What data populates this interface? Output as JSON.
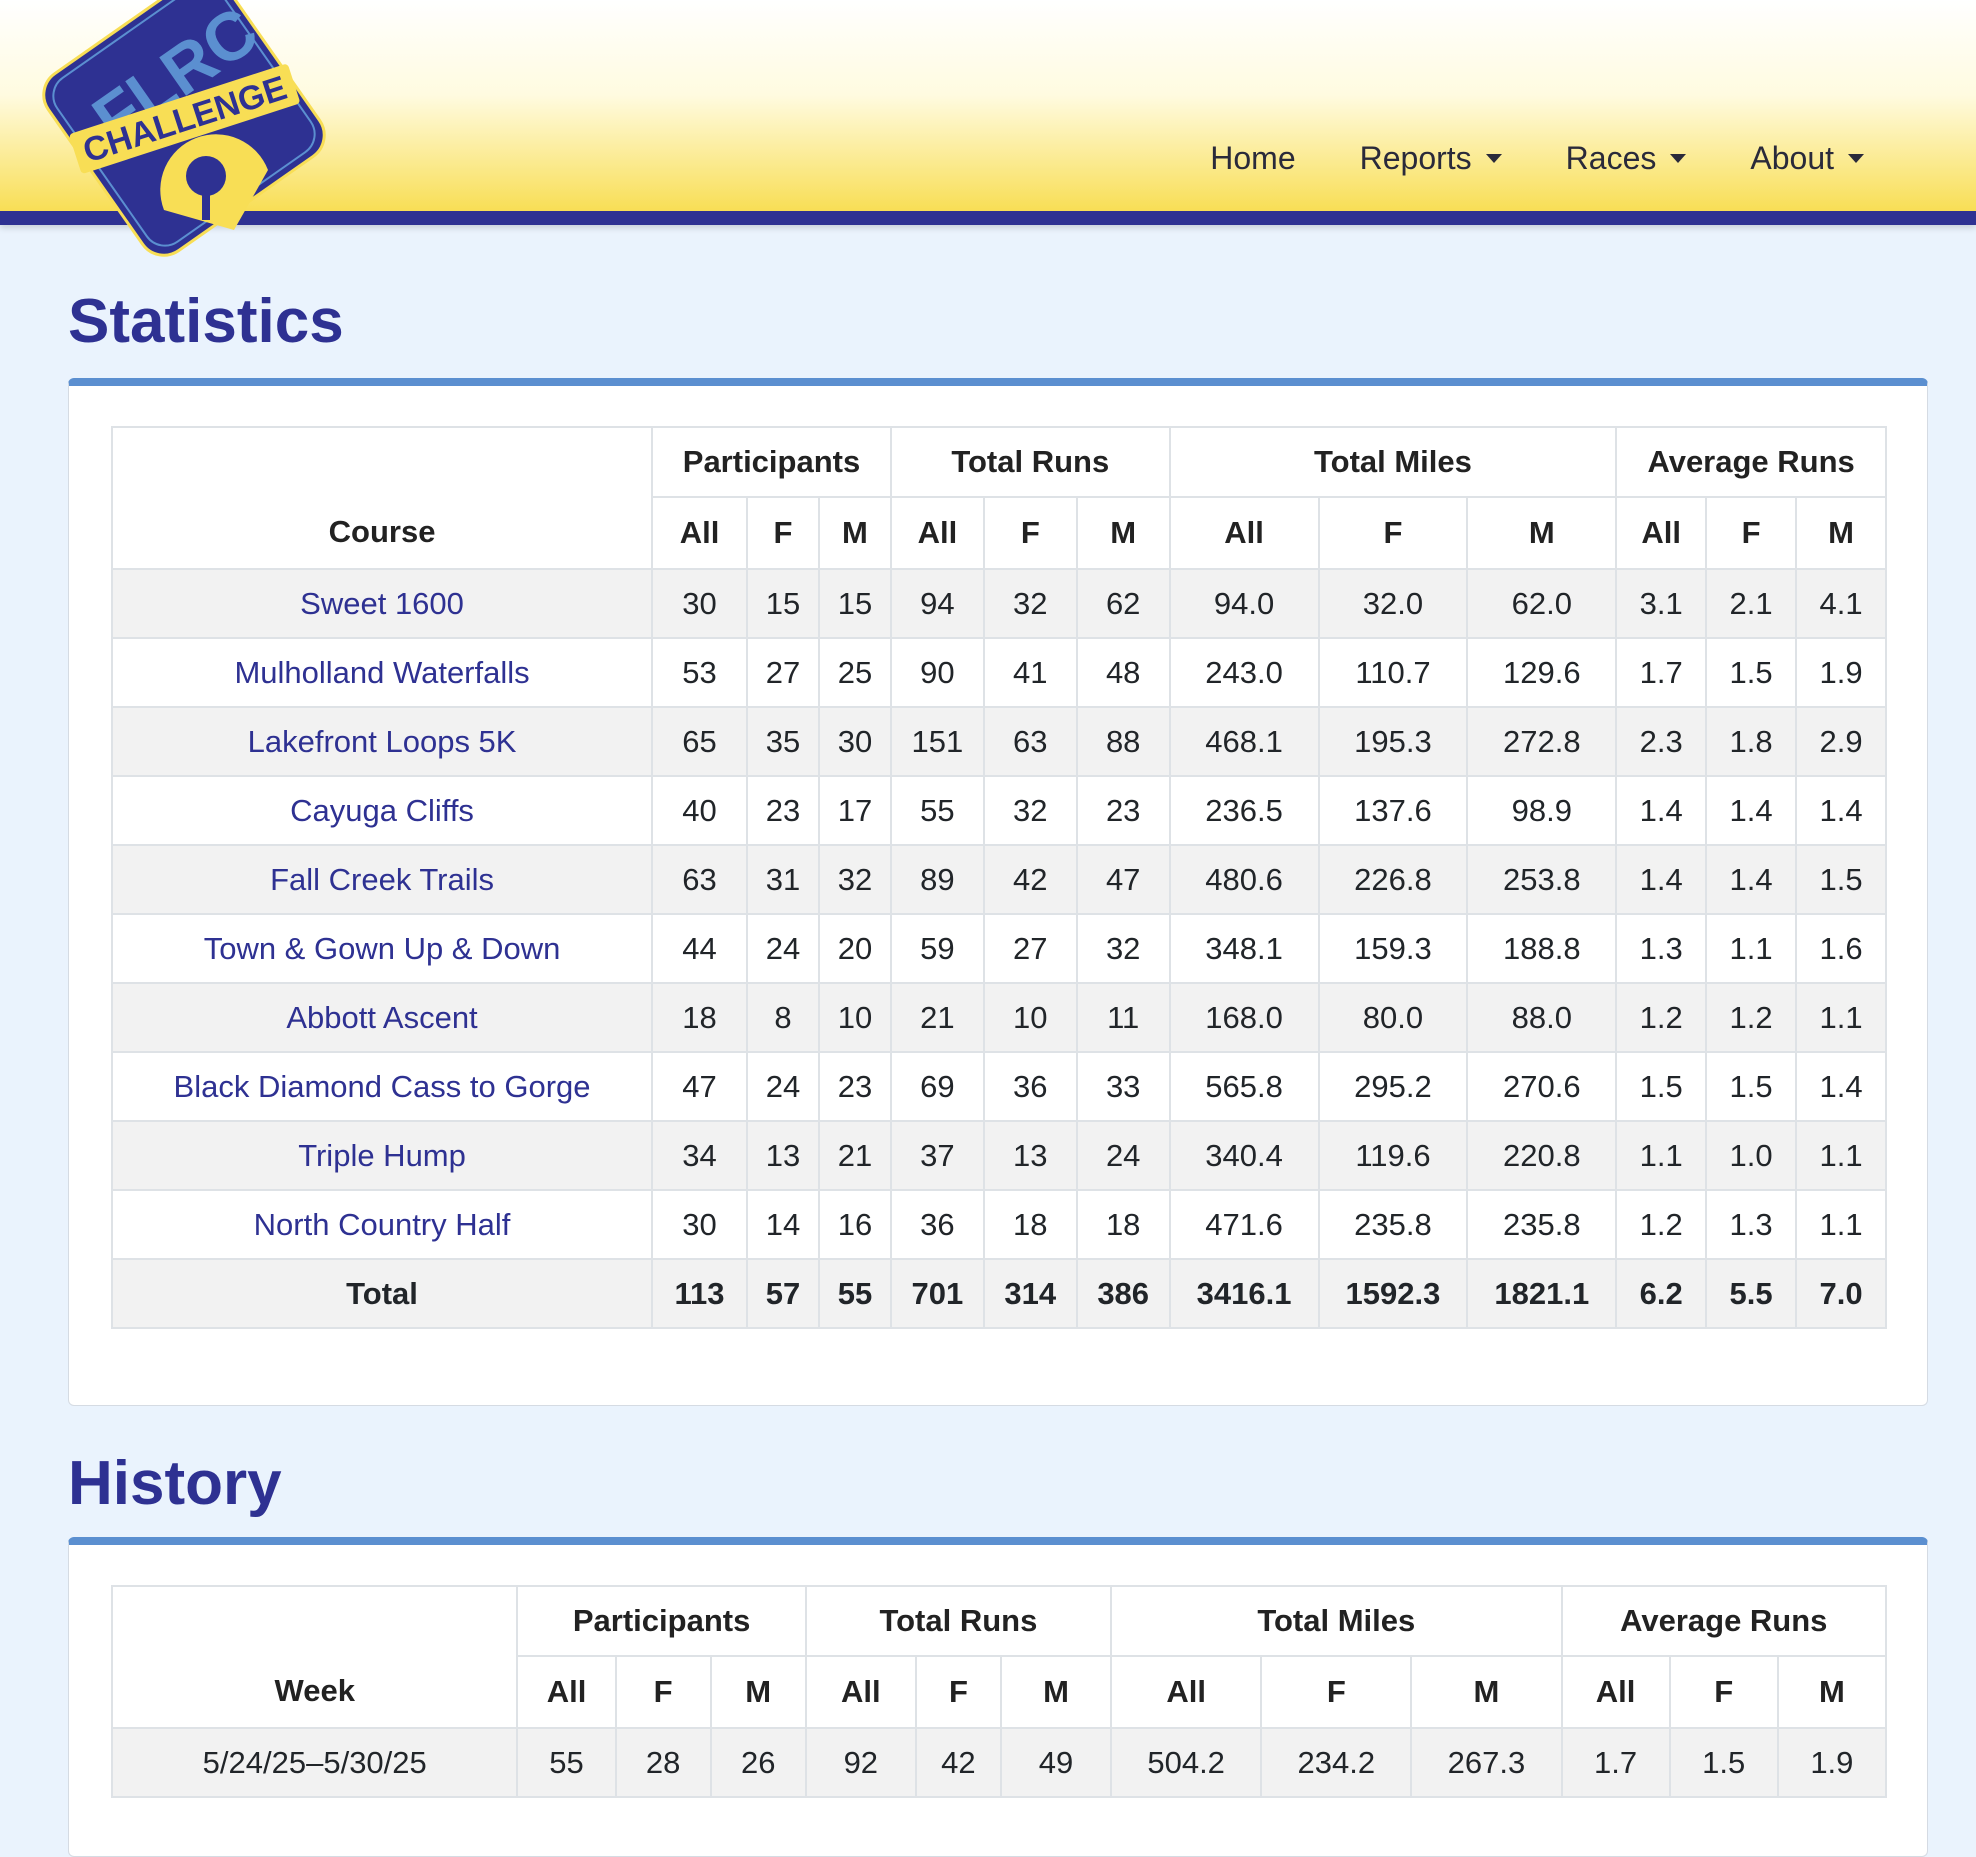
{
  "logo": {
    "top_text": "FLRC",
    "band_text": "CHALLENGE"
  },
  "nav": {
    "home": "Home",
    "reports": "Reports",
    "races": "Races",
    "about": "About"
  },
  "statistics": {
    "title": "Statistics",
    "group_headers": [
      "Participants",
      "Total Runs",
      "Total Miles",
      "Average Runs"
    ],
    "course_header": "Course",
    "sub_headers": [
      "All",
      "F",
      "M",
      "All",
      "F",
      "M",
      "All",
      "F",
      "M",
      "All",
      "F",
      "M"
    ],
    "rows": [
      {
        "course": "Sweet 1600",
        "values": [
          "30",
          "15",
          "15",
          "94",
          "32",
          "62",
          "94.0",
          "32.0",
          "62.0",
          "3.1",
          "2.1",
          "4.1"
        ]
      },
      {
        "course": "Mulholland Waterfalls",
        "values": [
          "53",
          "27",
          "25",
          "90",
          "41",
          "48",
          "243.0",
          "110.7",
          "129.6",
          "1.7",
          "1.5",
          "1.9"
        ]
      },
      {
        "course": "Lakefront Loops 5K",
        "values": [
          "65",
          "35",
          "30",
          "151",
          "63",
          "88",
          "468.1",
          "195.3",
          "272.8",
          "2.3",
          "1.8",
          "2.9"
        ]
      },
      {
        "course": "Cayuga Cliffs",
        "values": [
          "40",
          "23",
          "17",
          "55",
          "32",
          "23",
          "236.5",
          "137.6",
          "98.9",
          "1.4",
          "1.4",
          "1.4"
        ]
      },
      {
        "course": "Fall Creek Trails",
        "values": [
          "63",
          "31",
          "32",
          "89",
          "42",
          "47",
          "480.6",
          "226.8",
          "253.8",
          "1.4",
          "1.4",
          "1.5"
        ]
      },
      {
        "course": "Town & Gown Up & Down",
        "values": [
          "44",
          "24",
          "20",
          "59",
          "27",
          "32",
          "348.1",
          "159.3",
          "188.8",
          "1.3",
          "1.1",
          "1.6"
        ]
      },
      {
        "course": "Abbott Ascent",
        "values": [
          "18",
          "8",
          "10",
          "21",
          "10",
          "11",
          "168.0",
          "80.0",
          "88.0",
          "1.2",
          "1.2",
          "1.1"
        ]
      },
      {
        "course": "Black Diamond Cass to Gorge",
        "values": [
          "47",
          "24",
          "23",
          "69",
          "36",
          "33",
          "565.8",
          "295.2",
          "270.6",
          "1.5",
          "1.5",
          "1.4"
        ]
      },
      {
        "course": "Triple Hump",
        "values": [
          "34",
          "13",
          "21",
          "37",
          "13",
          "24",
          "340.4",
          "119.6",
          "220.8",
          "1.1",
          "1.0",
          "1.1"
        ]
      },
      {
        "course": "North Country Half",
        "values": [
          "30",
          "14",
          "16",
          "36",
          "18",
          "18",
          "471.6",
          "235.8",
          "235.8",
          "1.2",
          "1.3",
          "1.1"
        ]
      }
    ],
    "total": {
      "label": "Total",
      "values": [
        "113",
        "57",
        "55",
        "701",
        "314",
        "386",
        "3416.1",
        "1592.3",
        "1821.1",
        "6.2",
        "5.5",
        "7.0"
      ]
    }
  },
  "history": {
    "title": "History",
    "group_headers": [
      "Participants",
      "Total Runs",
      "Total Miles",
      "Average Runs"
    ],
    "week_header": "Week",
    "sub_headers": [
      "All",
      "F",
      "M",
      "All",
      "F",
      "M",
      "All",
      "F",
      "M",
      "All",
      "F",
      "M"
    ],
    "rows": [
      {
        "week": "5/24/25–5/30/25",
        "values": [
          "55",
          "28",
          "26",
          "92",
          "42",
          "49",
          "504.2",
          "234.2",
          "267.3",
          "1.7",
          "1.5",
          "1.9"
        ]
      }
    ]
  },
  "colors": {
    "brand_navy": "#2e3192",
    "brand_yellow": "#f8de55",
    "accent_blue": "#5b8fd0",
    "page_bg": "#eaf3fd"
  },
  "icons": {
    "dropdown": "caret-down-icon"
  }
}
